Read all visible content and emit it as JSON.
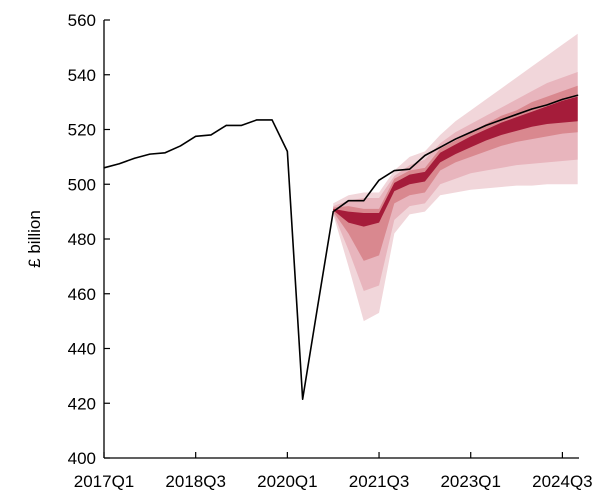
{
  "chart_data": {
    "type": "area",
    "title": "",
    "xlabel": "",
    "ylabel": "£ billion",
    "ylim": [
      400,
      560
    ],
    "yticks": [
      400,
      420,
      440,
      460,
      480,
      500,
      520,
      540,
      560
    ],
    "x_tick_labels": [
      "2017Q1",
      "2018Q3",
      "2020Q1",
      "2021Q3",
      "2023Q1",
      "2024Q3"
    ],
    "x_periods": [
      "2017Q1",
      "2017Q2",
      "2017Q3",
      "2017Q4",
      "2018Q1",
      "2018Q2",
      "2018Q3",
      "2018Q4",
      "2019Q1",
      "2019Q2",
      "2019Q3",
      "2019Q4",
      "2020Q1",
      "2020Q2",
      "2020Q3",
      "2020Q4",
      "2021Q1",
      "2021Q2",
      "2021Q3",
      "2021Q4",
      "2022Q1",
      "2022Q2",
      "2022Q3",
      "2022Q4",
      "2023Q1",
      "2023Q2",
      "2023Q3",
      "2023Q4",
      "2024Q1",
      "2024Q2",
      "2024Q3",
      "2024Q4"
    ],
    "grid": false,
    "colors": {
      "line": "#000000",
      "band_outer": "#f1d6da",
      "band_mid1": "#e8b5bd",
      "band_mid2": "#d9888f",
      "band_inner": "#a51c3a"
    },
    "series": [
      {
        "values": [
          506,
          507.5,
          509.5,
          511,
          511.5,
          514,
          517.5,
          518,
          521.5,
          521.5,
          523.5,
          523.5,
          512,
          421.5,
          456,
          490,
          494,
          494,
          501.5,
          505,
          505.5,
          510.5,
          513.5,
          516.5,
          519,
          521.5,
          523.5,
          525.5,
          527.5,
          529,
          531,
          532.5
        ]
      }
    ],
    "fan": {
      "start_index": 15,
      "outer_lower": [
        489,
        470,
        450,
        453,
        482,
        489,
        490,
        496,
        497,
        498,
        498.5,
        499,
        499.5,
        499.5,
        500,
        500,
        500
      ],
      "outer_upper": [
        493,
        496,
        497,
        497,
        505,
        510,
        512,
        518,
        523,
        527,
        531,
        535,
        539,
        543,
        547,
        551,
        555
      ],
      "mid1_lower": [
        489.5,
        476,
        461,
        463,
        487,
        492,
        493,
        500,
        502,
        504,
        505,
        506,
        507,
        507.5,
        508,
        508.5,
        509
      ],
      "mid1_upper": [
        492,
        494,
        495,
        495,
        503,
        507,
        509,
        515,
        519,
        522,
        525,
        528,
        531,
        534,
        537,
        539,
        541
      ],
      "mid2_lower": [
        490,
        482,
        472,
        474,
        493,
        496,
        497,
        505,
        508,
        510,
        512,
        514,
        515.5,
        516.5,
        517.5,
        518.5,
        519
      ],
      "mid2_upper": [
        491.5,
        492,
        491,
        491,
        502,
        505,
        506,
        513,
        516,
        519,
        522,
        525,
        527,
        530,
        532,
        534,
        536
      ],
      "inner_lower": [
        490.5,
        486,
        484.5,
        486,
        497.5,
        500,
        501,
        508,
        511,
        513.5,
        516,
        518,
        519.5,
        521,
        522,
        522.5,
        523
      ],
      "inner_upper": [
        491,
        490,
        489.5,
        489.5,
        500.5,
        503.5,
        504.5,
        511.5,
        514.5,
        517.5,
        520,
        522.5,
        524.5,
        526.5,
        528.5,
        530.5,
        532
      ]
    }
  }
}
